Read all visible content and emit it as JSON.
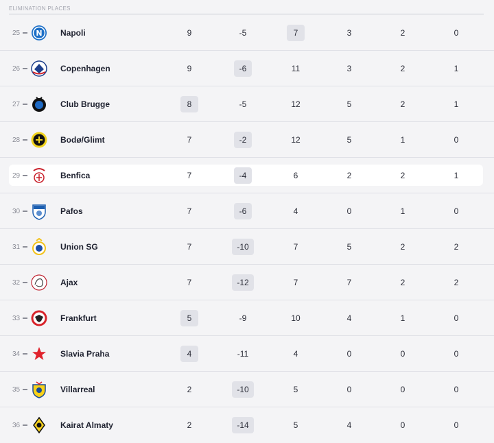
{
  "section": {
    "label": "ELIMINATION PLACES"
  },
  "rows": [
    {
      "pos": "25",
      "team": "Napoli",
      "crest": "napoli-crest-icon",
      "v": [
        "9",
        "-5",
        "7",
        "3",
        "2",
        "0"
      ],
      "box": 2,
      "highlight": false
    },
    {
      "pos": "26",
      "team": "Copenhagen",
      "crest": "copenhagen-crest-icon",
      "v": [
        "9",
        "-6",
        "11",
        "3",
        "2",
        "1"
      ],
      "box": 1,
      "highlight": false
    },
    {
      "pos": "27",
      "team": "Club Brugge",
      "crest": "club-brugge-crest-icon",
      "v": [
        "8",
        "-5",
        "12",
        "5",
        "2",
        "1"
      ],
      "box": 0,
      "highlight": false
    },
    {
      "pos": "28",
      "team": "Bodø/Glimt",
      "crest": "bodo-glimt-crest-icon",
      "v": [
        "7",
        "-2",
        "12",
        "5",
        "1",
        "0"
      ],
      "box": 1,
      "highlight": false
    },
    {
      "pos": "29",
      "team": "Benfica",
      "crest": "benfica-crest-icon",
      "v": [
        "7",
        "-4",
        "6",
        "2",
        "2",
        "1"
      ],
      "box": 1,
      "highlight": true
    },
    {
      "pos": "30",
      "team": "Pafos",
      "crest": "pafos-crest-icon",
      "v": [
        "7",
        "-6",
        "4",
        "0",
        "1",
        "0"
      ],
      "box": 1,
      "highlight": false
    },
    {
      "pos": "31",
      "team": "Union SG",
      "crest": "union-sg-crest-icon",
      "v": [
        "7",
        "-10",
        "7",
        "5",
        "2",
        "2"
      ],
      "box": 1,
      "highlight": false
    },
    {
      "pos": "32",
      "team": "Ajax",
      "crest": "ajax-crest-icon",
      "v": [
        "7",
        "-12",
        "7",
        "7",
        "2",
        "2"
      ],
      "box": 1,
      "highlight": false
    },
    {
      "pos": "33",
      "team": "Frankfurt",
      "crest": "frankfurt-crest-icon",
      "v": [
        "5",
        "-9",
        "10",
        "4",
        "1",
        "0"
      ],
      "box": 0,
      "highlight": false
    },
    {
      "pos": "34",
      "team": "Slavia Praha",
      "crest": "slavia-praha-crest-icon",
      "v": [
        "4",
        "-11",
        "4",
        "0",
        "0",
        "0"
      ],
      "box": 0,
      "highlight": false
    },
    {
      "pos": "35",
      "team": "Villarreal",
      "crest": "villarreal-crest-icon",
      "v": [
        "2",
        "-10",
        "5",
        "0",
        "0",
        "0"
      ],
      "box": 1,
      "highlight": false
    },
    {
      "pos": "36",
      "team": "Kairat Almaty",
      "crest": "kairat-almaty-crest-icon",
      "v": [
        "2",
        "-14",
        "5",
        "4",
        "0",
        "0"
      ],
      "box": 1,
      "highlight": false
    }
  ],
  "colors": {
    "highlight_bg": "#ffffff",
    "box_bg": "#e1e2e8",
    "page_bg": "#f4f4f6"
  }
}
